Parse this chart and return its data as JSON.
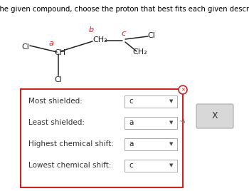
{
  "title": "From the given compound, choose the proton that best fits each given description.",
  "bg_color": "#ffffff",
  "box_bg": "#ffffff",
  "box_border": "#cc2222",
  "rows": [
    {
      "label": "Most shielded:",
      "answer": "c"
    },
    {
      "label": "Least shielded:",
      "answer": "a"
    },
    {
      "label": "Highest chemical shift:",
      "answer": "a"
    },
    {
      "label": "Lowest chemical shift:",
      "answer": "c"
    }
  ],
  "mol_color_red": "#cc2222",
  "mol_color_black": "#222222"
}
